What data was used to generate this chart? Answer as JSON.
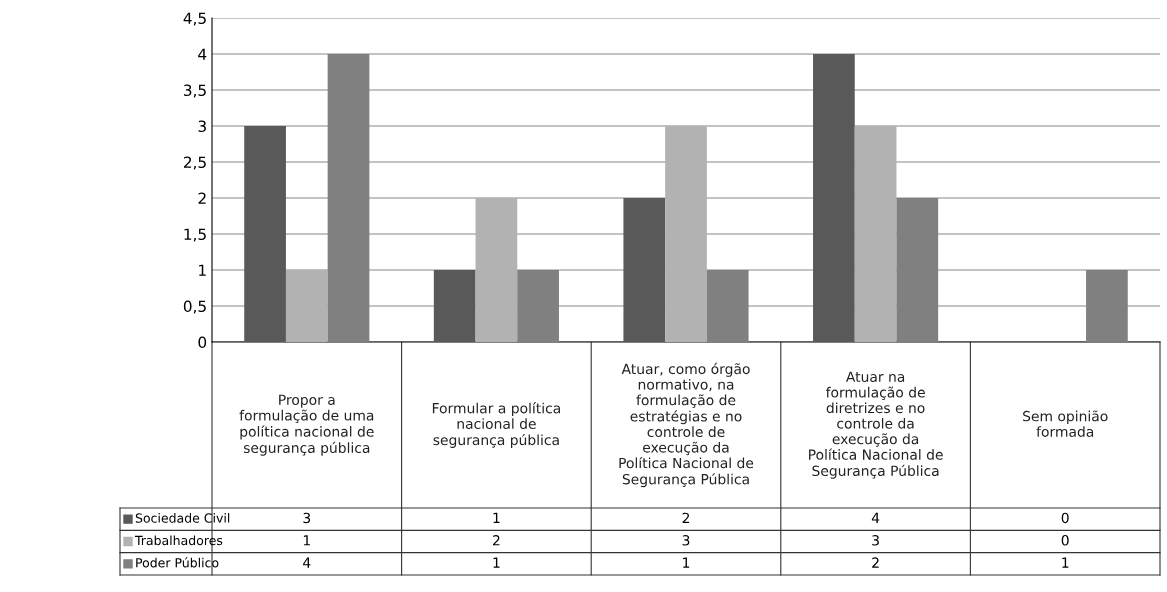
{
  "chart_data": {
    "type": "bar",
    "categories": [
      "Propor a\nformulação de uma\npolítica nacional de\nsegurança pública",
      "Formular a política\nnacional de\nsegurança pública",
      "Atuar, como órgão\nnormativo, na\nformulação de\nestratégias e no\ncontrole de\nexecução da\nPolítica Nacional de\nSegurança Pública",
      "Atuar na\nformulação de\ndiretrizes e no\ncontrole da\nexecução da\nPolítica Nacional de\nSegurança Pública",
      "Sem opinião\nformada"
    ],
    "series": [
      {
        "name": "Sociedade Civil",
        "color": "#595959",
        "values": [
          3,
          1,
          2,
          4,
          0
        ]
      },
      {
        "name": "Trabalhadores",
        "color": "#b2b2b2",
        "values": [
          1,
          2,
          3,
          3,
          0
        ]
      },
      {
        "name": "Poder Público",
        "color": "#808080",
        "values": [
          4,
          1,
          1,
          2,
          1
        ]
      }
    ],
    "ylim": [
      0,
      4.5
    ],
    "yticks": [
      0,
      {
        "value": 0.5,
        "label": "0,5"
      },
      1,
      {
        "value": 1.5,
        "label": "1,5"
      },
      2,
      {
        "value": 2.5,
        "label": "2,5"
      },
      3,
      {
        "value": 3.5,
        "label": "3,5"
      },
      4,
      {
        "value": 4.5,
        "label": "4,5"
      }
    ],
    "grid": "y",
    "data_labels": true,
    "legend": "bottom left"
  }
}
